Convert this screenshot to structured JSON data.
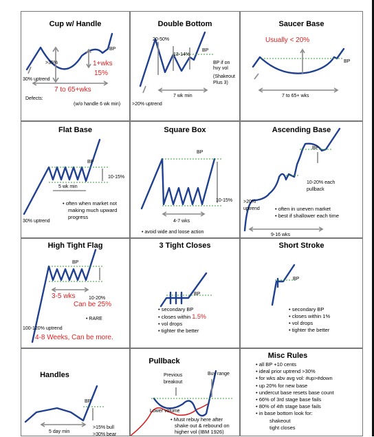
{
  "cells": {
    "cup": {
      "title": "Cup w/ Handle",
      "bp": "BP",
      "pct": ">35%",
      "red1": "1+wks",
      "red2": "15%",
      "red3": "7 to 65+wks",
      "uptrend": "30% uptrend",
      "defects": "Defects:",
      "handle_note": "(w/o handle 6 wk min)"
    },
    "double": {
      "title": "Double Bottom",
      "pct1": "20-50%",
      "pct2": "13-14%",
      "bp": "BP",
      "bp_note1": "BP if on",
      "bp_note2": "hvy vol",
      "bp_note3": "(Shakeout",
      "bp_note4": "Plus 3)",
      "wk": "7 wk min",
      "uptrend": ">20% uptrend"
    },
    "saucer": {
      "title": "Saucer Base",
      "red": "Usually < 20%",
      "bp": "BP",
      "wks": "7 to 65+ wks"
    },
    "flat": {
      "title": "Flat Base",
      "bp": "BP",
      "pct": "10-15%",
      "wk": "5 wk min",
      "uptrend": "30% uptrend",
      "notes": [
        "• often when market not",
        "  making much upward",
        "  progress"
      ]
    },
    "square": {
      "title": "Square Box",
      "bp": "BP",
      "pct": "10-15%",
      "wks": "4-7 wks",
      "note": "• avoid wide and loose action"
    },
    "ascending": {
      "title": "Ascending Base",
      "bp": "BP",
      "pull1": "10-20% each",
      "pull2": "pullback",
      "up1": ">20%",
      "up2": "uptrend",
      "notes": [
        "• often in uneven market",
        "• best if shallower each time"
      ],
      "wks": "9-16 wks"
    },
    "htf": {
      "title": "High Tight Flag",
      "bp": "BP",
      "red1": "3-5 wks",
      "pct": "10-20%",
      "red2": "Can be 25%",
      "rare": "• RARE",
      "uptrend": "100-120% uptrend",
      "red3": "4-8 Weeks, Can be more."
    },
    "tight": {
      "title": "3 Tight Closes",
      "bp": "BP",
      "notes": [
        "• secondary BP",
        "• closes within ",
        "• vol drops",
        "• tighter the better"
      ],
      "red": "1.5%"
    },
    "short": {
      "title": "Short Stroke",
      "bp": "BP",
      "notes": [
        "• secondary BP",
        "• closes within 1%",
        "• vol drops",
        "• tighter the better"
      ]
    },
    "handles": {
      "title": "Handles",
      "bp": "BP",
      "day": "5 day min",
      "bull": ">15% bull",
      "bear": ">30% bear"
    },
    "pullback": {
      "title": "Pullback",
      "prev1": "Previous",
      "prev2": "breakout",
      "buy": "Buy range",
      "lower": "Lower volume",
      "notes": [
        "• Must rebuy here after",
        "  shake out & rebound on",
        "  higher vol (IBM 1926)"
      ]
    },
    "misc": {
      "title": "Misc Rules",
      "items": [
        "• all BP +10 cents",
        "• ideal prior uptrend >30%",
        "• for wks abv avg vol: #up>#down",
        "• up 20% for new base",
        "• undercut base resets base count",
        "• 66% of 3rd stage base fails",
        "• 80% of 4th stage base fails",
        "• in base bottom look for:",
        "      shakeout",
        "      tight closes"
      ]
    }
  }
}
